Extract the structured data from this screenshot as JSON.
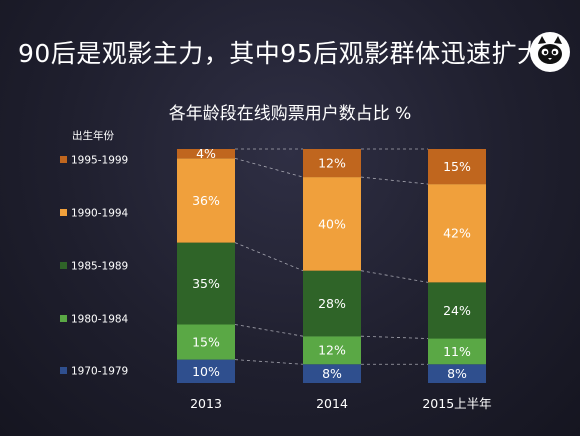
{
  "headline": "90后是观影主力，其中95后观影群体迅速扩大",
  "logo": {
    "icon": "cat-face-icon"
  },
  "chart_data": {
    "type": "bar",
    "stacked": true,
    "title": "各年龄段在线购票用户数占比 %",
    "legend_title": "出生年份",
    "legend_position": "left",
    "categories": [
      "2013",
      "2014",
      "2015上半年"
    ],
    "ylim": [
      0,
      100
    ],
    "grid": false,
    "series": [
      {
        "name": "1970-1979",
        "values": [
          10,
          8,
          8
        ],
        "color": "#2f4f8e"
      },
      {
        "name": "1980-1984",
        "values": [
          15,
          12,
          11
        ],
        "color": "#5aa845"
      },
      {
        "name": "1985-1989",
        "values": [
          35,
          28,
          24
        ],
        "color": "#2f6428"
      },
      {
        "name": "1990-1994",
        "values": [
          36,
          40,
          42
        ],
        "color": "#f0a03c"
      },
      {
        "name": "1995-1999",
        "values": [
          4,
          12,
          15
        ],
        "color": "#c0661e"
      }
    ],
    "data_labels": [
      [
        "10%",
        "8%",
        "8%"
      ],
      [
        "15%",
        "12%",
        "11%"
      ],
      [
        "35%",
        "28%",
        "24%"
      ],
      [
        "36%",
        "40%",
        "42%"
      ],
      [
        "4%",
        "12%",
        "15%"
      ]
    ]
  }
}
